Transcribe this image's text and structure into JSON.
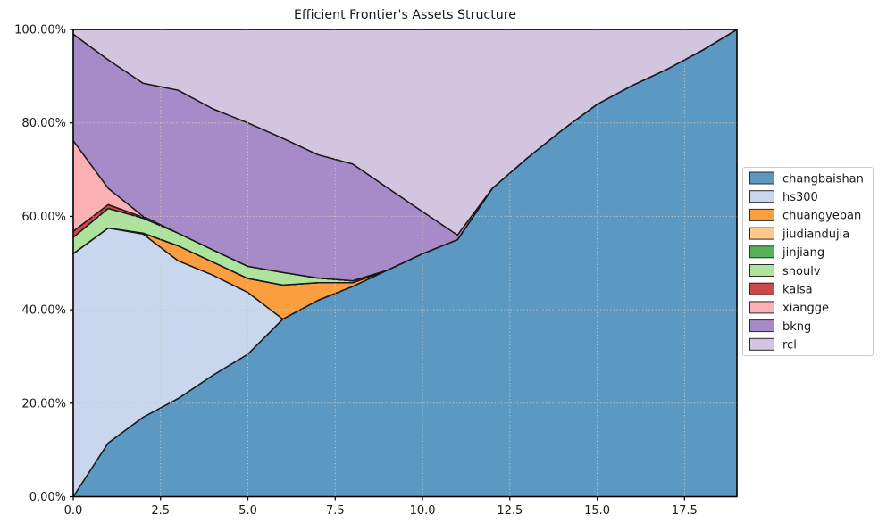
{
  "title": "Efficient Frontier's Assets Structure",
  "chart_data": {
    "type": "area",
    "stacked": true,
    "title": "Efficient Frontier's Assets Structure",
    "xlabel": "",
    "ylabel": "",
    "xlim": [
      0,
      19
    ],
    "ylim": [
      0,
      100
    ],
    "grid": true,
    "grid_style": "dotted",
    "legend_position": "center-right-outside",
    "x": [
      0,
      1,
      2,
      3,
      4,
      5,
      6,
      7,
      8,
      9,
      10,
      11,
      12,
      13,
      14,
      15,
      16,
      17,
      18,
      19
    ],
    "x_tick_values": [
      0,
      2.5,
      5,
      7.5,
      10,
      12.5,
      15,
      17.5
    ],
    "x_tick_labels": [
      "0.0",
      "2.5",
      "5.0",
      "7.5",
      "10.0",
      "12.5",
      "15.0",
      "17.5"
    ],
    "y_tick_values": [
      0,
      20,
      40,
      60,
      80,
      100
    ],
    "y_tick_labels": [
      "0.00%",
      "20.00%",
      "40.00%",
      "60.00%",
      "80.00%",
      "100.00%"
    ],
    "edge_color": "#1a1a1a",
    "series": [
      {
        "name": "changbaishan",
        "color": "#5b98c2",
        "values": [
          0,
          11.5,
          17,
          21,
          26,
          30.5,
          38,
          42,
          45,
          48.5,
          52,
          55,
          66,
          72.5,
          78.5,
          84,
          88,
          91.5,
          95.5,
          100
        ]
      },
      {
        "name": "hs300",
        "color": "#c8d7ee",
        "values": [
          52,
          46,
          39.2,
          29.5,
          21.4,
          13.2,
          0,
          0,
          0,
          0,
          0,
          0,
          0,
          0,
          0,
          0,
          0,
          0,
          0,
          0
        ]
      },
      {
        "name": "chuangyeban",
        "color": "#fb9e3f",
        "values": [
          0,
          0,
          0.2,
          3.2,
          2.8,
          3.0,
          7.3,
          3.8,
          0.8,
          0,
          0,
          0,
          0,
          0,
          0,
          0,
          0,
          0,
          0,
          0
        ]
      },
      {
        "name": "jiudiandujia",
        "color": "#fdc88c",
        "values": [
          0,
          0,
          0,
          0,
          0,
          0,
          0,
          0,
          0,
          0,
          0,
          0,
          0,
          0,
          0,
          0,
          0,
          0,
          0,
          0
        ]
      },
      {
        "name": "jinjiang",
        "color": "#57b357",
        "values": [
          0,
          0,
          0,
          0,
          0,
          0,
          0,
          0,
          0,
          0,
          0,
          0,
          0,
          0,
          0,
          0,
          0,
          0,
          0,
          0
        ]
      },
      {
        "name": "shoulv",
        "color": "#ade39c",
        "values": [
          3.5,
          4.2,
          3.2,
          2.7,
          2.6,
          2.6,
          2.7,
          1.0,
          0.4,
          0,
          0,
          0,
          0,
          0,
          0,
          0,
          0,
          0,
          0,
          0
        ]
      },
      {
        "name": "kaisa",
        "color": "#c94a4e",
        "values": [
          1.3,
          0.8,
          0.2,
          0,
          0,
          0,
          0,
          0,
          0,
          0,
          0,
          0,
          0,
          0,
          0,
          0,
          0,
          0,
          0,
          0
        ]
      },
      {
        "name": "xiangge",
        "color": "#fbb0b1",
        "values": [
          19.4,
          3.5,
          0.2,
          0,
          0,
          0,
          0,
          0,
          0,
          0,
          0,
          0,
          0,
          0,
          0,
          0,
          0,
          0,
          0,
          0
        ]
      },
      {
        "name": "bkng",
        "color": "#a78bc8",
        "values": [
          22.8,
          27.5,
          28.5,
          30.6,
          30.2,
          30.7,
          28.7,
          26.4,
          25,
          17.6,
          9,
          1,
          0,
          0,
          0,
          0,
          0,
          0,
          0,
          0
        ]
      },
      {
        "name": "rcl",
        "color": "#d3c5e0",
        "values": [
          1,
          6.5,
          11.5,
          13,
          17,
          20,
          23.3,
          26.8,
          28.8,
          33.9,
          39,
          44,
          34,
          27.5,
          21.5,
          16,
          12,
          8.5,
          4.5,
          0
        ]
      }
    ]
  },
  "legend": {
    "items": [
      "changbaishan",
      "hs300",
      "chuangyeban",
      "jiudiandujia",
      "jinjiang",
      "shoulv",
      "kaisa",
      "xiangge",
      "bkng",
      "rcl"
    ]
  },
  "style": {
    "grid_color": "#ccc8bd",
    "frame_color": "#000000",
    "text_color": "#1a1a1a",
    "legend_border_color": "#cccccc",
    "legend_bg": "#ffffff",
    "swatch_edge": "#2b2b2b"
  }
}
